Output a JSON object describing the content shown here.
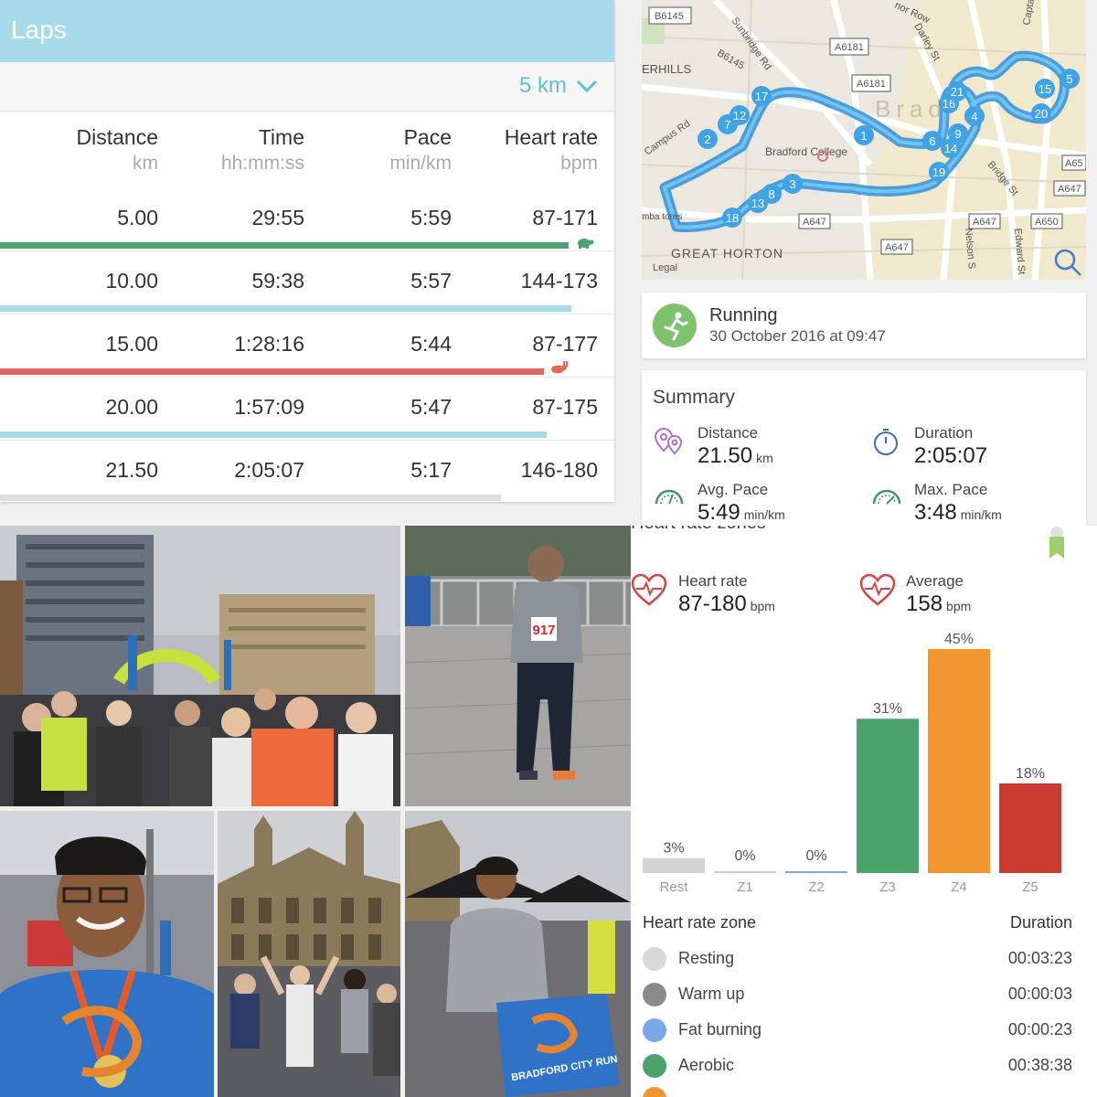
{
  "laps": {
    "title": "Laps",
    "split_selector": "5 km",
    "headers": [
      {
        "label": "Distance",
        "unit": "km"
      },
      {
        "label": "Time",
        "unit": "hh:mm:ss"
      },
      {
        "label": "Pace",
        "unit": "min/km"
      },
      {
        "label": "Heart rate",
        "unit": "bpm"
      }
    ],
    "rows": [
      {
        "distance": "5.00",
        "time": "29:55",
        "pace": "5:59",
        "hr": "87-171",
        "bar_fraction": 0.925,
        "bar_color": "#4aa36a",
        "marker": "turtle"
      },
      {
        "distance": "10.00",
        "time": "59:38",
        "pace": "5:57",
        "hr": "144-173",
        "bar_fraction": 0.93,
        "bar_color": "#a7dbe9",
        "marker": ""
      },
      {
        "distance": "15.00",
        "time": "1:28:16",
        "pace": "5:44",
        "hr": "87-177",
        "bar_fraction": 0.885,
        "bar_color": "#e0685f",
        "marker": "hare"
      },
      {
        "distance": "20.00",
        "time": "1:57:09",
        "pace": "5:47",
        "hr": "87-175",
        "bar_fraction": 0.89,
        "bar_color": "#a7dbe9",
        "marker": ""
      },
      {
        "distance": "21.50",
        "time": "2:05:07",
        "pace": "5:17",
        "hr": "146-180",
        "bar_fraction": 0.815,
        "bar_color": "#e0e0e0",
        "marker": ""
      }
    ]
  },
  "map": {
    "road_labels": [
      "B6145",
      "A6181",
      "A6181",
      "Sunbridge Rd",
      "B6145",
      "ERHILLS",
      "Campus Rd",
      "Bradford College",
      "A647",
      "A647",
      "A647",
      "A650",
      "A647",
      "A65",
      "GREAT HORTON",
      "Legal",
      "Bridge St",
      "Nelson S",
      "Edward St",
      "Darley St",
      "nor Row",
      "Captai",
      "mba tores",
      "Brad"
    ],
    "markers": [
      "1",
      "2",
      "3",
      "4",
      "5",
      "6",
      "7",
      "8",
      "9",
      "12",
      "13",
      "14",
      "15",
      "16",
      "17",
      "18",
      "19",
      "20",
      "21"
    ],
    "route_color": "#3fa3e5"
  },
  "activity": {
    "type": "Running",
    "datetime": "30 October 2016 at 09:47"
  },
  "summary": {
    "title": "Summary",
    "distance": {
      "label": "Distance",
      "value": "21.50",
      "unit": "km"
    },
    "duration": {
      "label": "Duration",
      "value": "2:05:07"
    },
    "avg_pace": {
      "label": "Avg. Pace",
      "value": "5:49",
      "unit": "min/km"
    },
    "max_pace": {
      "label": "Max. Pace",
      "value": "3:48",
      "unit": "min/km"
    }
  },
  "hr_zones": {
    "title_partial": "Heart rate zones",
    "heart_rate": {
      "label": "Heart rate",
      "value": "87-180",
      "unit": "bpm"
    },
    "average": {
      "label": "Average",
      "value": "158",
      "unit": "bpm"
    },
    "list_header": {
      "zone": "Heart rate zone",
      "duration": "Duration"
    },
    "zones": [
      {
        "name": "Resting",
        "duration": "00:03:23",
        "color": "#d8d8d8"
      },
      {
        "name": "Warm up",
        "duration": "00:00:03",
        "color": "#8a8a8a"
      },
      {
        "name": "Fat burning",
        "duration": "00:00:23",
        "color": "#7aa9e8"
      },
      {
        "name": "Aerobic",
        "duration": "00:38:38",
        "color": "#4aa36a"
      }
    ]
  },
  "chart_data": {
    "type": "bar",
    "categories": [
      "Rest",
      "Z1",
      "Z2",
      "Z3",
      "Z4",
      "Z5"
    ],
    "values": [
      3,
      0,
      0,
      31,
      45,
      18
    ],
    "labels": [
      "3%",
      "0%",
      "0%",
      "31%",
      "45%",
      "18%"
    ],
    "colors": [
      "#d4d4d4",
      "#cccccc",
      "#7aa9e8",
      "#4aa36a",
      "#f0962c",
      "#cc3b2f"
    ],
    "ylim": [
      0,
      45
    ]
  },
  "photos": {
    "finish_banner": "BRADFORD CITY RUN",
    "bib": "917"
  }
}
